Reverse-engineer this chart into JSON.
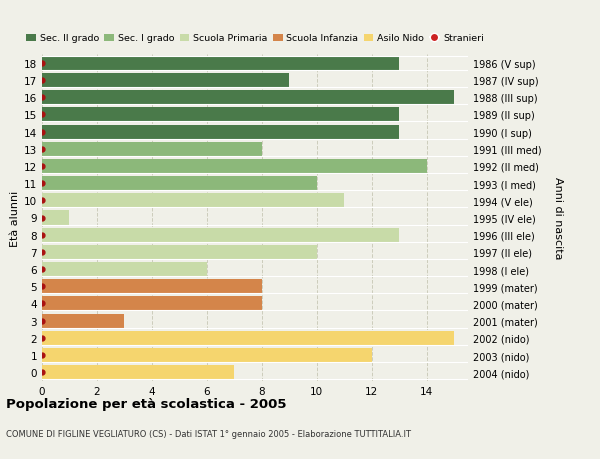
{
  "ages": [
    0,
    1,
    2,
    3,
    4,
    5,
    6,
    7,
    8,
    9,
    10,
    11,
    12,
    13,
    14,
    15,
    16,
    17,
    18
  ],
  "values": [
    7,
    12,
    15,
    3,
    8,
    8,
    6,
    10,
    13,
    1,
    11,
    10,
    14,
    8,
    13,
    13,
    15,
    9,
    13
  ],
  "bar_colors": [
    "#f5d56e",
    "#f5d56e",
    "#f5d56e",
    "#d4854a",
    "#d4854a",
    "#d4854a",
    "#c8dba8",
    "#c8dba8",
    "#c8dba8",
    "#c8dba8",
    "#c8dba8",
    "#8cb87a",
    "#8cb87a",
    "#8cb87a",
    "#4a7a4a",
    "#4a7a4a",
    "#4a7a4a",
    "#4a7a4a",
    "#4a7a4a"
  ],
  "right_labels": [
    "2004 (nido)",
    "2003 (nido)",
    "2002 (nido)",
    "2001 (mater)",
    "2000 (mater)",
    "1999 (mater)",
    "1998 (I ele)",
    "1997 (II ele)",
    "1996 (III ele)",
    "1995 (IV ele)",
    "1994 (V ele)",
    "1993 (I med)",
    "1992 (II med)",
    "1991 (III med)",
    "1990 (I sup)",
    "1989 (II sup)",
    "1988 (III sup)",
    "1987 (IV sup)",
    "1986 (V sup)"
  ],
  "legend_labels": [
    "Sec. II grado",
    "Sec. I grado",
    "Scuola Primaria",
    "Scuola Infanzia",
    "Asilo Nido",
    "Stranieri"
  ],
  "legend_colors": [
    "#4a7a4a",
    "#8cb87a",
    "#c8dba8",
    "#d4854a",
    "#f5d56e",
    "#cc2222"
  ],
  "ylabel": "Età alunni",
  "right_ylabel": "Anni di nascita",
  "title": "Popolazione per età scolastica - 2005",
  "subtitle": "COMUNE DI FIGLINE VEGLIATURO (CS) - Dati ISTAT 1° gennaio 2005 - Elaborazione TUTTITALIA.IT",
  "xlim": [
    0,
    15.5
  ],
  "ylim": [
    -0.5,
    18.5
  ],
  "xticks": [
    0,
    2,
    4,
    6,
    8,
    10,
    12,
    14
  ],
  "background_color": "#f0f0e8",
  "dot_color": "#aa1111",
  "grid_color": "#ccccbb",
  "bar_height": 0.82
}
